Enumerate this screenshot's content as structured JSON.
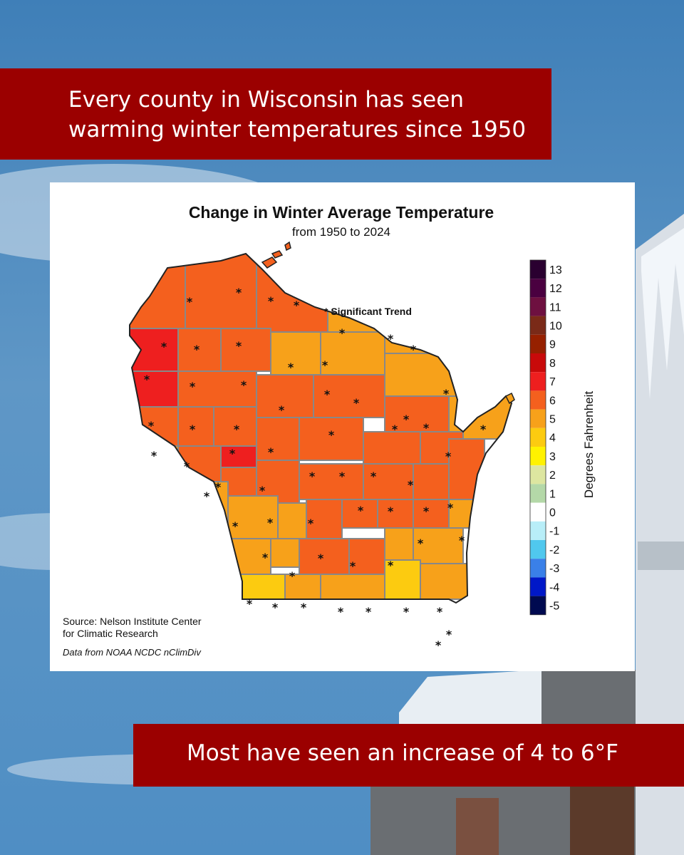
{
  "header": {
    "line1": "Every county in Wisconsin has seen",
    "line2": "warming winter temperatures since 1950"
  },
  "footer": {
    "text": "Most have seen an increase of 4 to 6°F"
  },
  "map": {
    "title": "Change in Winter Average Temperature",
    "subtitle": "from 1950 to 2024",
    "significance_note": "* Significant Trend",
    "source_line1": "Source: Nelson Institute Center",
    "source_line2": "for Climatic Research",
    "data_note": "Data from NOAA NCDC nClimDiv",
    "legend_title": "Degrees Fahrenheit",
    "legend": [
      {
        "label": "13",
        "color": "#2a0030"
      },
      {
        "label": "12",
        "color": "#4a0040"
      },
      {
        "label": "11",
        "color": "#6e1040"
      },
      {
        "label": "10",
        "color": "#7a2a18"
      },
      {
        "label": "9",
        "color": "#962000"
      },
      {
        "label": "8",
        "color": "#c80a0a"
      },
      {
        "label": "7",
        "color": "#ee1f1f"
      },
      {
        "label": "6",
        "color": "#f4601e"
      },
      {
        "label": "5",
        "color": "#f7a11a"
      },
      {
        "label": "4",
        "color": "#fccb10"
      },
      {
        "label": "3",
        "color": "#fff200"
      },
      {
        "label": "2",
        "color": "#dde6a0"
      },
      {
        "label": "1",
        "color": "#b4d8a8"
      },
      {
        "label": "0",
        "color": "#ffffff"
      },
      {
        "label": "-1",
        "color": "#b8eef8"
      },
      {
        "label": "-2",
        "color": "#50c8ee"
      },
      {
        "label": "-3",
        "color": "#3a80e8"
      },
      {
        "label": "-4",
        "color": "#0018c8"
      },
      {
        "label": "-5",
        "color": "#000a50"
      }
    ]
  }
}
